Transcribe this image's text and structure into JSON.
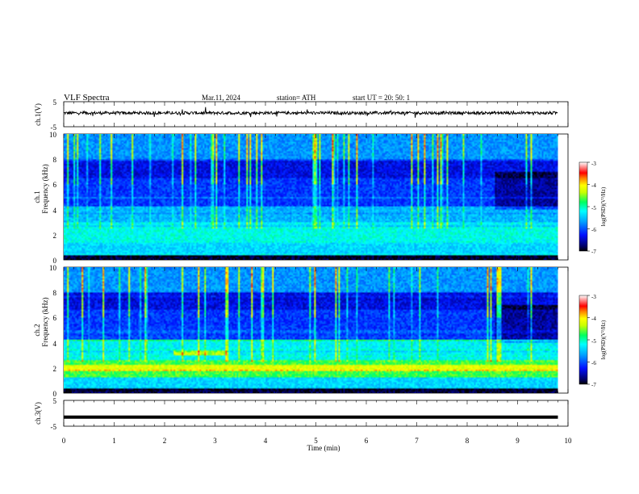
{
  "header": {
    "title": "VLF  Spectra",
    "date": "Mar.11, 2024",
    "station": "station= ATH",
    "start": "start  UT  =    20: 50: 1"
  },
  "chart_data": [
    {
      "type": "line",
      "name": "ch1-waveform",
      "ylabel": "ch.1(V)",
      "ylim": [
        -5,
        5
      ],
      "yticks": [
        "5",
        "-5"
      ],
      "xlim": [
        0,
        10
      ],
      "trace_level": 0.5,
      "trace_end_min": 9.8
    },
    {
      "type": "heatmap",
      "name": "ch1-spectrogram",
      "ylabel": "Frequency  (kHz)",
      "panel_label": "ch.1",
      "xlim": [
        0,
        10
      ],
      "ylim": [
        0,
        10
      ],
      "yticks": [
        "0",
        "2",
        "4",
        "6",
        "8",
        "10"
      ],
      "data_end_min": 9.8,
      "colorbar": {
        "label": "log(PSD)(V²/Hz)",
        "range": [
          -7,
          -3
        ],
        "ticks": [
          "-3",
          "-4",
          "-5",
          "-6",
          "-7"
        ]
      }
    },
    {
      "type": "heatmap",
      "name": "ch2-spectrogram",
      "ylabel": "Frequency  (kHz)",
      "panel_label": "ch.2",
      "xlim": [
        0,
        10
      ],
      "ylim": [
        0,
        10
      ],
      "yticks": [
        "0",
        "2",
        "4",
        "6",
        "8",
        "10"
      ],
      "data_end_min": 9.8,
      "colorbar": {
        "label": "log(PSD)(V²/Hz)",
        "range": [
          -7,
          -3
        ],
        "ticks": [
          "-3",
          "-4",
          "-5",
          "-6",
          "-7"
        ]
      }
    },
    {
      "type": "line",
      "name": "ch3-waveform",
      "ylabel": "ch.3(V)",
      "ylim": [
        -5,
        5
      ],
      "yticks": [
        "5",
        "-5"
      ],
      "xlim": [
        0,
        10
      ],
      "trace_level": -1.5,
      "trace_end_min": 9.8,
      "xlabel": "Time  (min)",
      "xticks": [
        "0",
        "1",
        "2",
        "3",
        "4",
        "5",
        "6",
        "7",
        "8",
        "9",
        "10"
      ]
    }
  ]
}
